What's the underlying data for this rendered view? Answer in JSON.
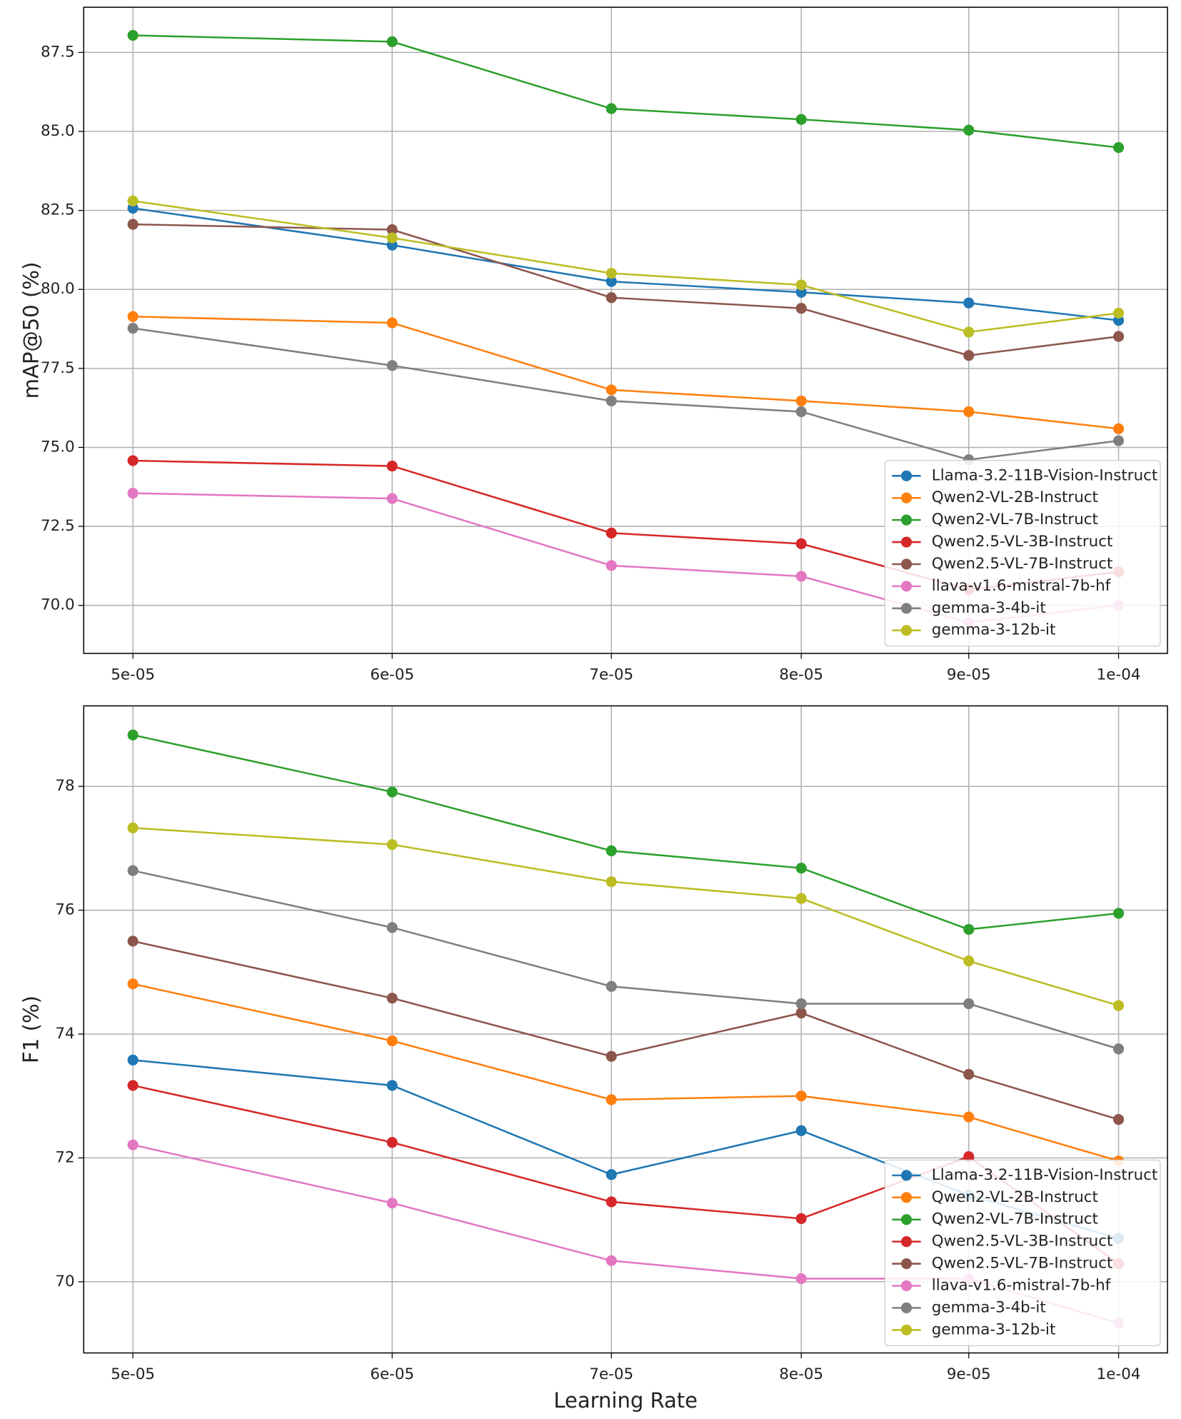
{
  "chart_data": [
    {
      "type": "line",
      "ylabel": "mAP@50 (%)",
      "xscale": "log",
      "grid": true,
      "legend": "lower right",
      "x": [
        5e-05,
        6e-05,
        7e-05,
        8e-05,
        9e-05,
        0.0001
      ],
      "xlim": [
        4.83e-05,
        0.0001035
      ],
      "xticks": [
        {
          "value": 5e-05,
          "label": "5e-05"
        },
        {
          "value": 6e-05,
          "label": "6e-05"
        },
        {
          "value": 7e-05,
          "label": "7e-05"
        },
        {
          "value": 8e-05,
          "label": "8e-05"
        },
        {
          "value": 9e-05,
          "label": "9e-05"
        },
        {
          "value": 0.0001,
          "label": "1e-04"
        }
      ],
      "ylim": [
        68.48,
        88.93
      ],
      "yticks": [
        {
          "value": 70,
          "label": "70.0"
        },
        72.5,
        {
          "value": 75,
          "label": "75.0"
        },
        77.5,
        {
          "value": 80,
          "label": "80.0"
        },
        82.5,
        {
          "value": 85,
          "label": "85.0"
        },
        87.5
      ],
      "series": [
        {
          "name": "Llama-3.2-11B-Vision-Instruct",
          "color": "#1f77b4",
          "values": [
            82.57,
            81.4,
            80.25,
            79.91,
            79.57,
            79.02
          ]
        },
        {
          "name": "Qwen2-VL-2B-Instruct",
          "color": "#ff7f0e",
          "values": [
            79.14,
            78.94,
            76.82,
            76.47,
            76.13,
            75.59
          ]
        },
        {
          "name": "Qwen2-VL-7B-Instruct",
          "color": "#2ca02c",
          "values": [
            88.04,
            87.84,
            85.72,
            85.38,
            85.04,
            84.49
          ]
        },
        {
          "name": "Qwen2.5-VL-3B-Instruct",
          "color": "#d62728",
          "values": [
            74.58,
            74.41,
            72.29,
            71.95,
            70.5,
            71.06
          ]
        },
        {
          "name": "Qwen2.5-VL-7B-Instruct",
          "color": "#8c564b",
          "values": [
            82.06,
            81.89,
            79.74,
            79.4,
            77.91,
            78.51
          ]
        },
        {
          "name": "llava-v1.6-mistral-7b-hf",
          "color": "#e377c2",
          "values": [
            73.55,
            73.38,
            71.26,
            70.92,
            69.46,
            70.0
          ]
        },
        {
          "name": "gemma-3-4b-it",
          "color": "#7f7f7f",
          "values": [
            78.77,
            77.59,
            76.47,
            76.13,
            74.61,
            75.21
          ]
        },
        {
          "name": "gemma-3-12b-it",
          "color": "#bcbd22",
          "values": [
            82.8,
            81.63,
            80.51,
            80.14,
            78.65,
            79.25
          ]
        }
      ]
    },
    {
      "type": "line",
      "ylabel": "F1 (%)",
      "xlabel": "Learning Rate",
      "xscale": "log",
      "grid": true,
      "legend": "lower right",
      "x": [
        5e-05,
        6e-05,
        7e-05,
        8e-05,
        9e-05,
        0.0001
      ],
      "xlim": [
        4.83e-05,
        0.0001035
      ],
      "xticks": [
        {
          "value": 5e-05,
          "label": "5e-05"
        },
        {
          "value": 6e-05,
          "label": "6e-05"
        },
        {
          "value": 7e-05,
          "label": "7e-05"
        },
        {
          "value": 8e-05,
          "label": "8e-05"
        },
        {
          "value": 9e-05,
          "label": "9e-05"
        },
        {
          "value": 0.0001,
          "label": "1e-04"
        }
      ],
      "ylim": [
        68.85,
        79.3
      ],
      "yticks": [
        70,
        72,
        74,
        76,
        78
      ],
      "series": [
        {
          "name": "Llama-3.2-11B-Vision-Instruct",
          "color": "#1f77b4",
          "values": [
            73.58,
            73.17,
            71.73,
            72.44,
            71.4,
            70.7
          ]
        },
        {
          "name": "Qwen2-VL-2B-Instruct",
          "color": "#ff7f0e",
          "values": [
            74.81,
            73.89,
            72.94,
            73.0,
            72.66,
            71.95
          ]
        },
        {
          "name": "Qwen2-VL-7B-Instruct",
          "color": "#2ca02c",
          "values": [
            78.83,
            77.91,
            76.96,
            76.68,
            75.69,
            75.95
          ]
        },
        {
          "name": "Qwen2.5-VL-3B-Instruct",
          "color": "#d62728",
          "values": [
            73.17,
            72.25,
            71.29,
            71.02,
            72.02,
            70.29
          ]
        },
        {
          "name": "Qwen2.5-VL-7B-Instruct",
          "color": "#8c564b",
          "values": [
            75.5,
            74.58,
            73.64,
            74.34,
            73.35,
            72.62
          ]
        },
        {
          "name": "llava-v1.6-mistral-7b-hf",
          "color": "#e377c2",
          "values": [
            72.21,
            71.27,
            70.34,
            70.05,
            70.05,
            69.33
          ]
        },
        {
          "name": "gemma-3-4b-it",
          "color": "#7f7f7f",
          "values": [
            76.64,
            75.72,
            74.77,
            74.49,
            74.49,
            73.76
          ]
        },
        {
          "name": "gemma-3-12b-it",
          "color": "#bcbd22",
          "values": [
            77.33,
            77.06,
            76.46,
            76.19,
            75.18,
            74.46
          ]
        }
      ]
    }
  ]
}
